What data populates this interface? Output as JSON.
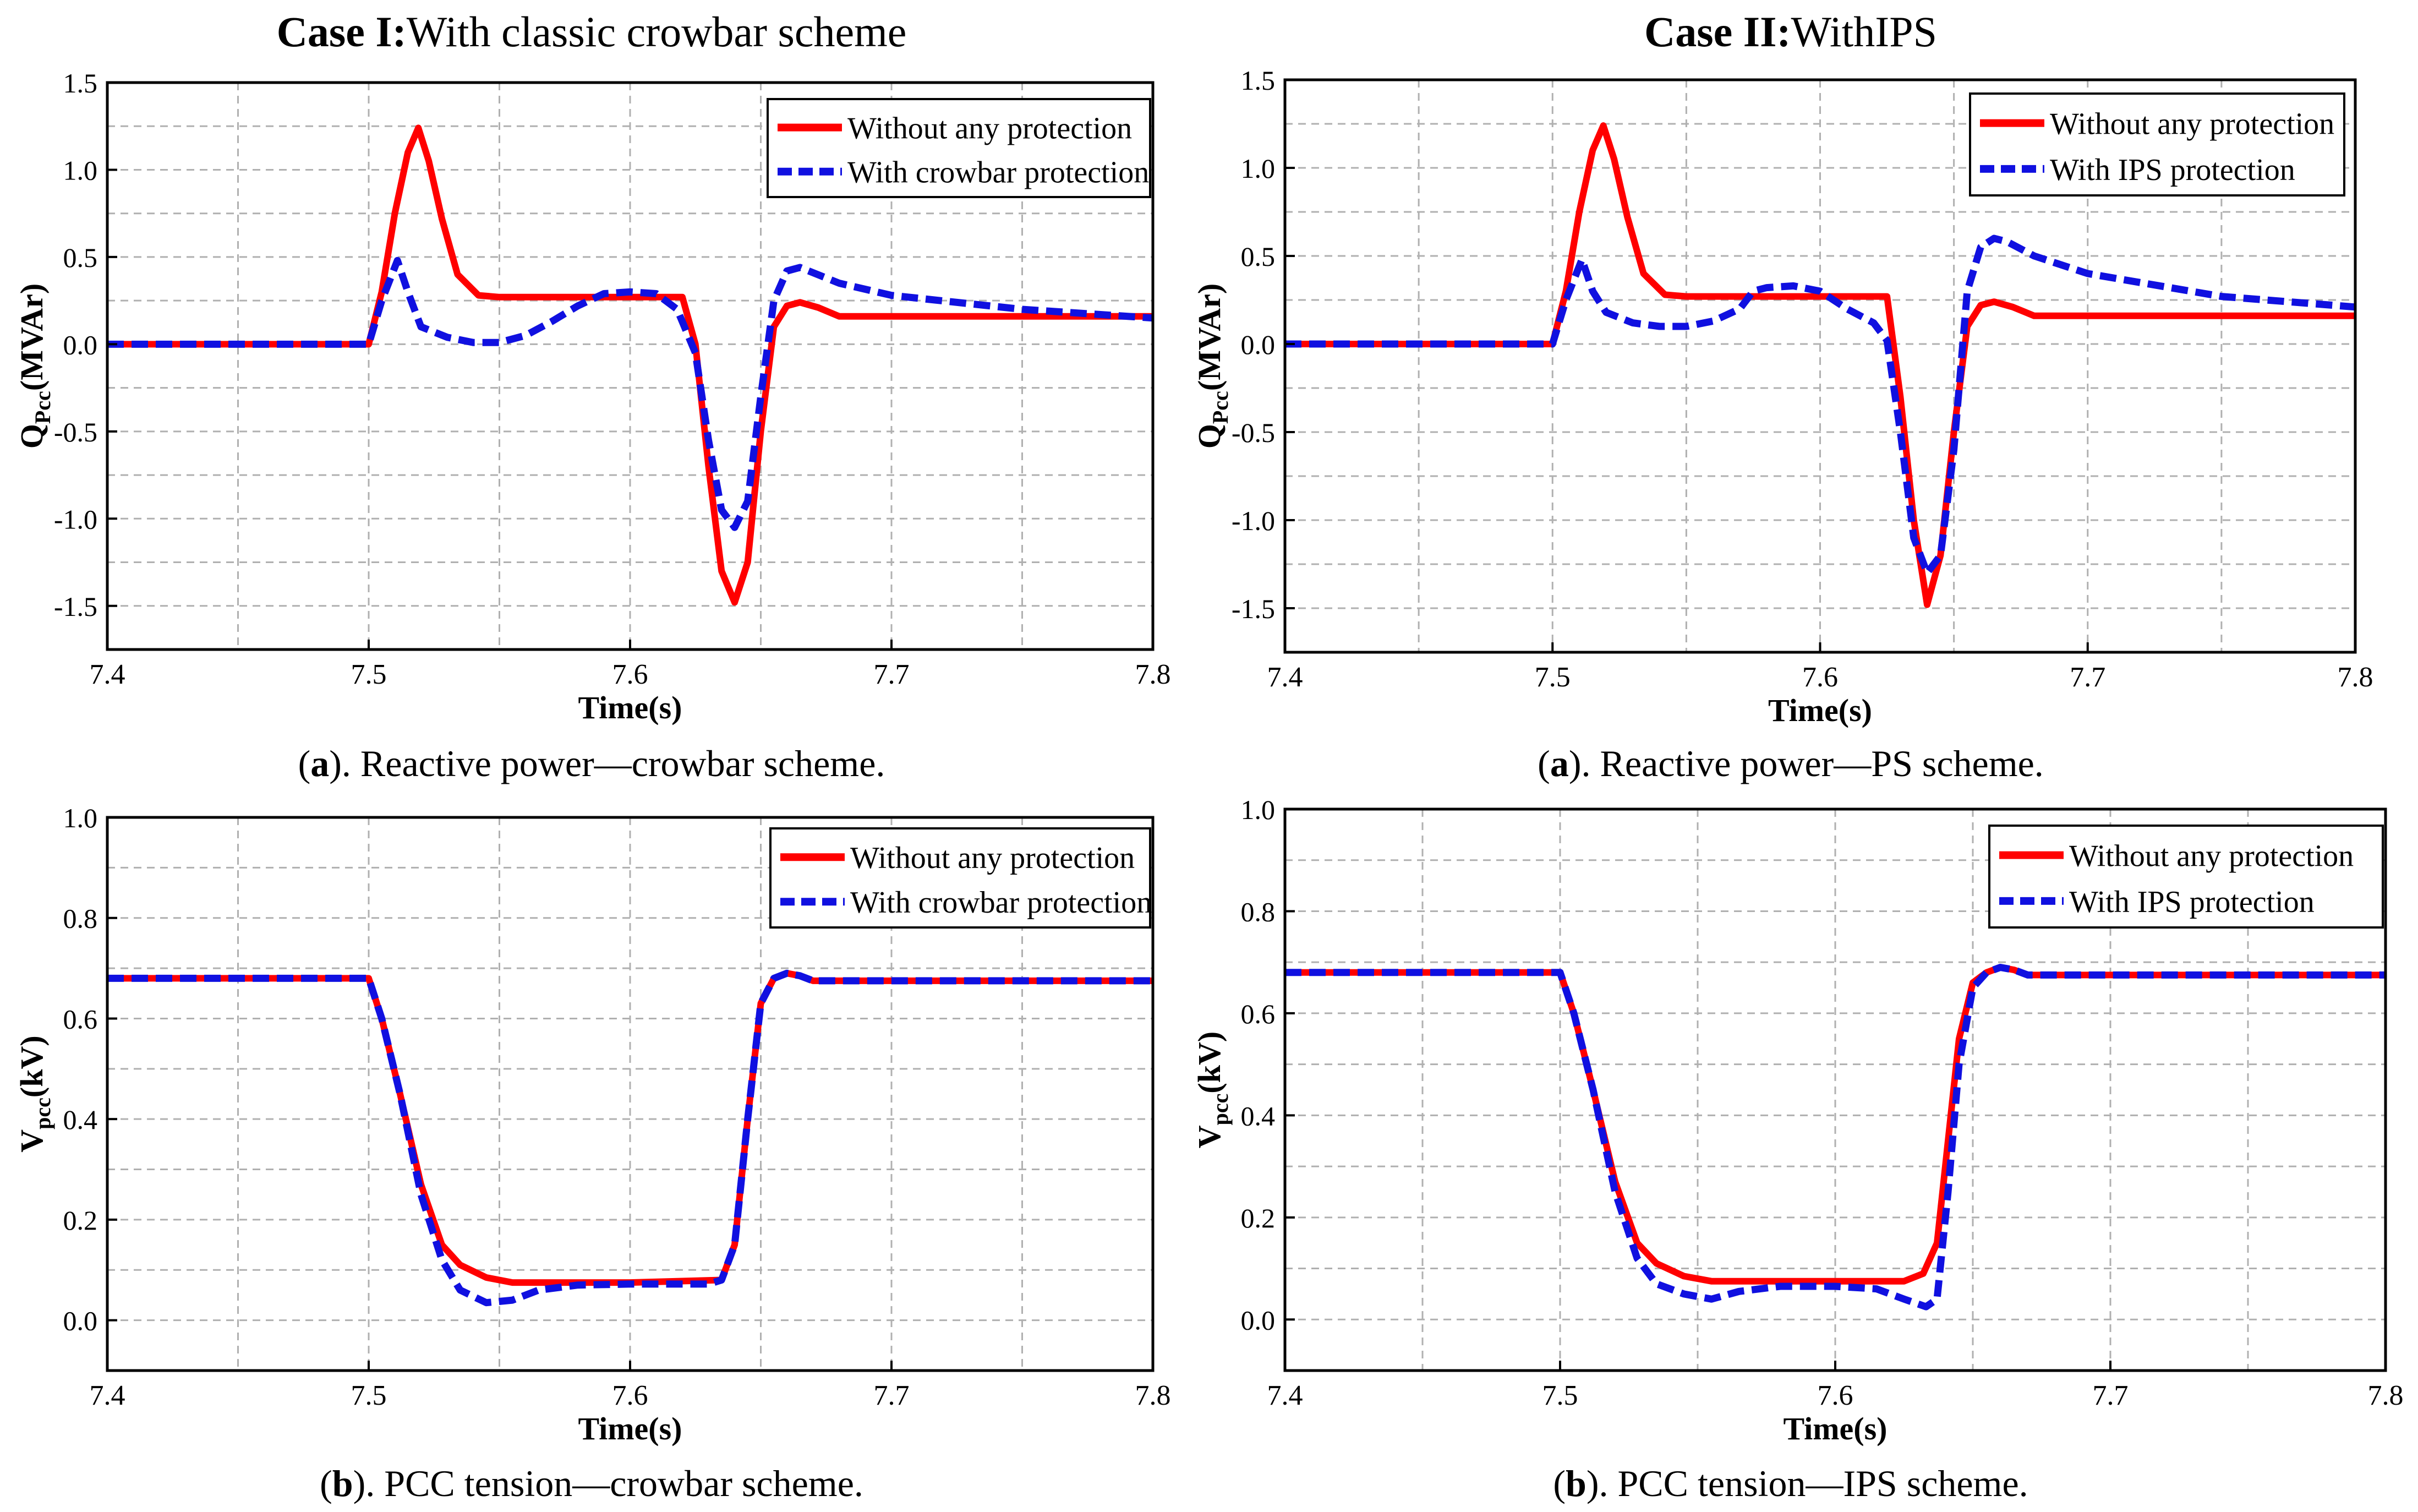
{
  "figure": {
    "case1": {
      "prefix": "Case I:",
      "rest": "With classic crowbar scheme"
    },
    "case2": {
      "prefix": "Case II:",
      "rest": "WithIPS"
    }
  },
  "colors": {
    "without": "#ff0000",
    "with": "#1010e0",
    "grid": "#b0b0b0",
    "axis": "#000000"
  },
  "chart_data": [
    {
      "id": "qa",
      "type": "line",
      "caption": {
        "letter": "a",
        "text": "). Reactive power—crowbar scheme."
      },
      "xlabel": "Time(s)",
      "ylabel": {
        "main": "Q",
        "sub": "Pcc",
        "unit": "(MVAr)"
      },
      "xlim": [
        7.4,
        7.8
      ],
      "ylim": [
        -1.75,
        1.5
      ],
      "xticks": [
        7.4,
        7.5,
        7.6,
        7.7,
        7.8
      ],
      "xtick_labels": [
        "7.4",
        "7.5",
        "7.6",
        "7.7",
        "7.8"
      ],
      "yticks": [
        1.5,
        1.0,
        0.5,
        0.0,
        -0.5,
        -1.0,
        -1.5
      ],
      "ytick_labels": [
        "1.5",
        "1.0",
        "0.5",
        "0.0",
        "-0.5",
        "-1.0",
        "-1.5"
      ],
      "legend_position": "top-right",
      "series": [
        {
          "name": "Without any protection",
          "style": "solid",
          "color": "#ff0000",
          "x": [
            7.4,
            7.5,
            7.505,
            7.51,
            7.515,
            7.519,
            7.523,
            7.528,
            7.534,
            7.542,
            7.55,
            7.6,
            7.62,
            7.625,
            7.63,
            7.635,
            7.64,
            7.645,
            7.65,
            7.655,
            7.66,
            7.665,
            7.672,
            7.68,
            7.8
          ],
          "y": [
            0,
            0,
            0.3,
            0.75,
            1.1,
            1.24,
            1.05,
            0.72,
            0.4,
            0.28,
            0.27,
            0.27,
            0.27,
            0.0,
            -0.7,
            -1.3,
            -1.48,
            -1.25,
            -0.5,
            0.1,
            0.22,
            0.24,
            0.21,
            0.16,
            0.16
          ]
        },
        {
          "name": "With crowbar protection",
          "style": "dashed",
          "color": "#1010e0",
          "x": [
            7.4,
            7.5,
            7.505,
            7.511,
            7.515,
            7.52,
            7.53,
            7.54,
            7.55,
            7.56,
            7.57,
            7.58,
            7.59,
            7.6,
            7.61,
            7.618,
            7.625,
            7.63,
            7.635,
            7.64,
            7.645,
            7.65,
            7.655,
            7.66,
            7.665,
            7.68,
            7.7,
            7.75,
            7.8
          ],
          "y": [
            0,
            0,
            0.25,
            0.48,
            0.3,
            0.1,
            0.04,
            0.01,
            0.01,
            0.05,
            0.13,
            0.22,
            0.29,
            0.3,
            0.29,
            0.2,
            -0.05,
            -0.55,
            -0.95,
            -1.05,
            -0.9,
            -0.3,
            0.25,
            0.42,
            0.44,
            0.35,
            0.28,
            0.2,
            0.15
          ]
        }
      ]
    },
    {
      "id": "qb",
      "type": "line",
      "caption": {
        "letter": "a",
        "text": "). Reactive power—PS scheme."
      },
      "xlabel": "Time(s)",
      "ylabel": {
        "main": "Q",
        "sub": "Pcc",
        "unit": "(MVAr)"
      },
      "xlim": [
        7.4,
        7.8
      ],
      "ylim": [
        -1.75,
        1.5
      ],
      "xticks": [
        7.4,
        7.5,
        7.6,
        7.7,
        7.8
      ],
      "xtick_labels": [
        "7.4",
        "7.5",
        "7.6",
        "7.7",
        "7.8"
      ],
      "yticks": [
        1.5,
        1.0,
        0.5,
        0.0,
        -0.5,
        -1.0,
        -1.5
      ],
      "ytick_labels": [
        "1.5",
        "1.0",
        "0.5",
        "0.0",
        "-0.5",
        "-1.0",
        "-1.5"
      ],
      "legend_position": "top-right",
      "series": [
        {
          "name": "Without any protection",
          "style": "solid",
          "color": "#ff0000",
          "x": [
            7.4,
            7.5,
            7.505,
            7.51,
            7.515,
            7.519,
            7.523,
            7.528,
            7.534,
            7.542,
            7.55,
            7.6,
            7.625,
            7.63,
            7.635,
            7.64,
            7.645,
            7.65,
            7.655,
            7.66,
            7.665,
            7.672,
            7.68,
            7.8
          ],
          "y": [
            0,
            0,
            0.3,
            0.75,
            1.1,
            1.24,
            1.05,
            0.72,
            0.4,
            0.28,
            0.27,
            0.27,
            0.27,
            -0.3,
            -1.0,
            -1.48,
            -1.2,
            -0.5,
            0.1,
            0.22,
            0.24,
            0.21,
            0.16,
            0.16
          ]
        },
        {
          "name": "With IPS protection",
          "style": "dashed",
          "color": "#1010e0",
          "x": [
            7.4,
            7.5,
            7.505,
            7.511,
            7.515,
            7.52,
            7.53,
            7.54,
            7.55,
            7.56,
            7.57,
            7.575,
            7.58,
            7.59,
            7.6,
            7.61,
            7.62,
            7.625,
            7.63,
            7.635,
            7.64,
            7.645,
            7.65,
            7.655,
            7.66,
            7.665,
            7.67,
            7.68,
            7.7,
            7.75,
            7.8
          ],
          "y": [
            0,
            0,
            0.25,
            0.48,
            0.3,
            0.18,
            0.12,
            0.1,
            0.1,
            0.13,
            0.2,
            0.3,
            0.32,
            0.33,
            0.3,
            0.2,
            0.12,
            0.02,
            -0.5,
            -1.1,
            -1.3,
            -1.2,
            -0.6,
            0.3,
            0.55,
            0.6,
            0.58,
            0.5,
            0.4,
            0.27,
            0.21
          ]
        }
      ]
    },
    {
      "id": "va",
      "type": "line",
      "caption": {
        "letter": "b",
        "text": "). PCC tension—crowbar scheme."
      },
      "xlabel": "Time(s)",
      "ylabel": {
        "main": "V",
        "sub": "pcc",
        "unit": "(kV)"
      },
      "xlim": [
        7.4,
        7.8
      ],
      "ylim": [
        -0.1,
        1.0
      ],
      "xticks": [
        7.4,
        7.5,
        7.6,
        7.7,
        7.8
      ],
      "xtick_labels": [
        "7.4",
        "7.5",
        "7.6",
        "7.7",
        "7.8"
      ],
      "yticks": [
        1.0,
        0.8,
        0.6,
        0.4,
        0.2,
        0.0
      ],
      "ytick_labels": [
        "1.0",
        "0.8",
        "0.6",
        "0.4",
        "0.2",
        "0.0"
      ],
      "legend_position": "top-right",
      "series": [
        {
          "name": "Without any protection",
          "style": "solid",
          "color": "#ff0000",
          "x": [
            7.4,
            7.5,
            7.505,
            7.512,
            7.52,
            7.528,
            7.535,
            7.545,
            7.555,
            7.6,
            7.635,
            7.64,
            7.645,
            7.65,
            7.655,
            7.66,
            7.665,
            7.67,
            7.8
          ],
          "y": [
            0.68,
            0.68,
            0.6,
            0.45,
            0.27,
            0.15,
            0.11,
            0.085,
            0.075,
            0.075,
            0.08,
            0.15,
            0.4,
            0.63,
            0.68,
            0.69,
            0.685,
            0.675,
            0.675
          ]
        },
        {
          "name": "With crowbar protection",
          "style": "dashed",
          "color": "#1010e0",
          "x": [
            7.4,
            7.5,
            7.505,
            7.512,
            7.52,
            7.528,
            7.535,
            7.545,
            7.555,
            7.565,
            7.58,
            7.6,
            7.63,
            7.635,
            7.64,
            7.645,
            7.65,
            7.655,
            7.66,
            7.665,
            7.67,
            7.8
          ],
          "y": [
            0.68,
            0.68,
            0.6,
            0.45,
            0.25,
            0.12,
            0.06,
            0.035,
            0.04,
            0.06,
            0.07,
            0.072,
            0.072,
            0.08,
            0.15,
            0.4,
            0.63,
            0.68,
            0.69,
            0.685,
            0.675,
            0.675
          ]
        }
      ]
    },
    {
      "id": "vb",
      "type": "line",
      "caption": {
        "letter": "b",
        "text": "). PCC tension—IPS scheme."
      },
      "xlabel": "Time(s)",
      "ylabel": {
        "main": "V",
        "sub": "pcc",
        "unit": "(kV)"
      },
      "xlim": [
        7.4,
        7.8
      ],
      "ylim": [
        -0.1,
        1.0
      ],
      "xticks": [
        7.4,
        7.5,
        7.6,
        7.7,
        7.8
      ],
      "xtick_labels": [
        "7.4",
        "7.5",
        "7.6",
        "7.7",
        "7.8"
      ],
      "yticks": [
        1.0,
        0.8,
        0.6,
        0.4,
        0.2,
        0.0
      ],
      "ytick_labels": [
        "1.0",
        "0.8",
        "0.6",
        "0.4",
        "0.2",
        "0.0"
      ],
      "legend_position": "top-right",
      "series": [
        {
          "name": "Without any protection",
          "style": "solid",
          "color": "#ff0000",
          "x": [
            7.4,
            7.5,
            7.505,
            7.512,
            7.52,
            7.528,
            7.535,
            7.545,
            7.555,
            7.6,
            7.625,
            7.632,
            7.637,
            7.641,
            7.645,
            7.65,
            7.655,
            7.66,
            7.665,
            7.67,
            7.8
          ],
          "y": [
            0.68,
            0.68,
            0.6,
            0.45,
            0.27,
            0.15,
            0.11,
            0.085,
            0.075,
            0.075,
            0.075,
            0.09,
            0.15,
            0.35,
            0.55,
            0.66,
            0.68,
            0.69,
            0.685,
            0.675,
            0.675
          ]
        },
        {
          "name": "With IPS protection",
          "style": "dashed",
          "color": "#1010e0",
          "x": [
            7.4,
            7.5,
            7.505,
            7.512,
            7.52,
            7.528,
            7.535,
            7.545,
            7.555,
            7.565,
            7.58,
            7.6,
            7.615,
            7.625,
            7.633,
            7.637,
            7.641,
            7.645,
            7.65,
            7.655,
            7.66,
            7.665,
            7.67,
            7.8
          ],
          "y": [
            0.68,
            0.68,
            0.6,
            0.45,
            0.25,
            0.12,
            0.07,
            0.05,
            0.04,
            0.055,
            0.065,
            0.065,
            0.06,
            0.04,
            0.025,
            0.04,
            0.25,
            0.5,
            0.65,
            0.68,
            0.69,
            0.685,
            0.675,
            0.675
          ]
        }
      ]
    }
  ]
}
